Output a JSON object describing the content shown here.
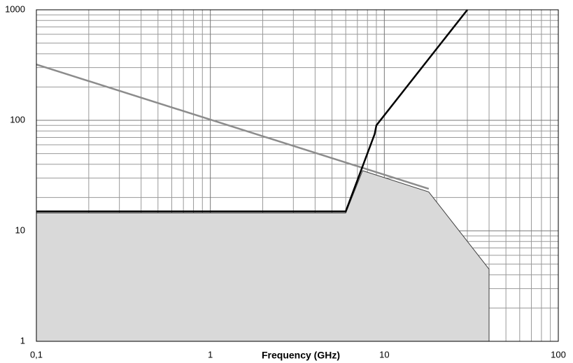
{
  "chart_data": {
    "type": "line",
    "xlabel": "Frequency (GHz)",
    "xscale": "log",
    "yscale": "log",
    "grid": true,
    "minor_grid": true,
    "xlim": [
      0.1,
      100
    ],
    "ylim": [
      1,
      1000
    ],
    "xticks": [
      {
        "value": 0.1,
        "label": "0,1"
      },
      1,
      10,
      100
    ],
    "yticks": [
      1,
      10,
      100,
      1000
    ],
    "series": [
      {
        "kind": "area",
        "color": "#d9d9d9",
        "edge": "#404040",
        "x": [
          0.1,
          0.1,
          6,
          7.5,
          18,
          40,
          40
        ],
        "values": [
          1,
          14.5,
          14.5,
          35,
          22.5,
          4.5,
          1
        ]
      },
      {
        "kind": "line",
        "color": "#8c8c8c",
        "x": [
          0.1,
          18
        ],
        "values": [
          320,
          24
        ]
      },
      {
        "kind": "line",
        "color": "#000000",
        "x": [
          0.1,
          6,
          8.8,
          9,
          30
        ],
        "values": [
          15,
          15,
          75,
          90,
          1000
        ]
      }
    ]
  }
}
